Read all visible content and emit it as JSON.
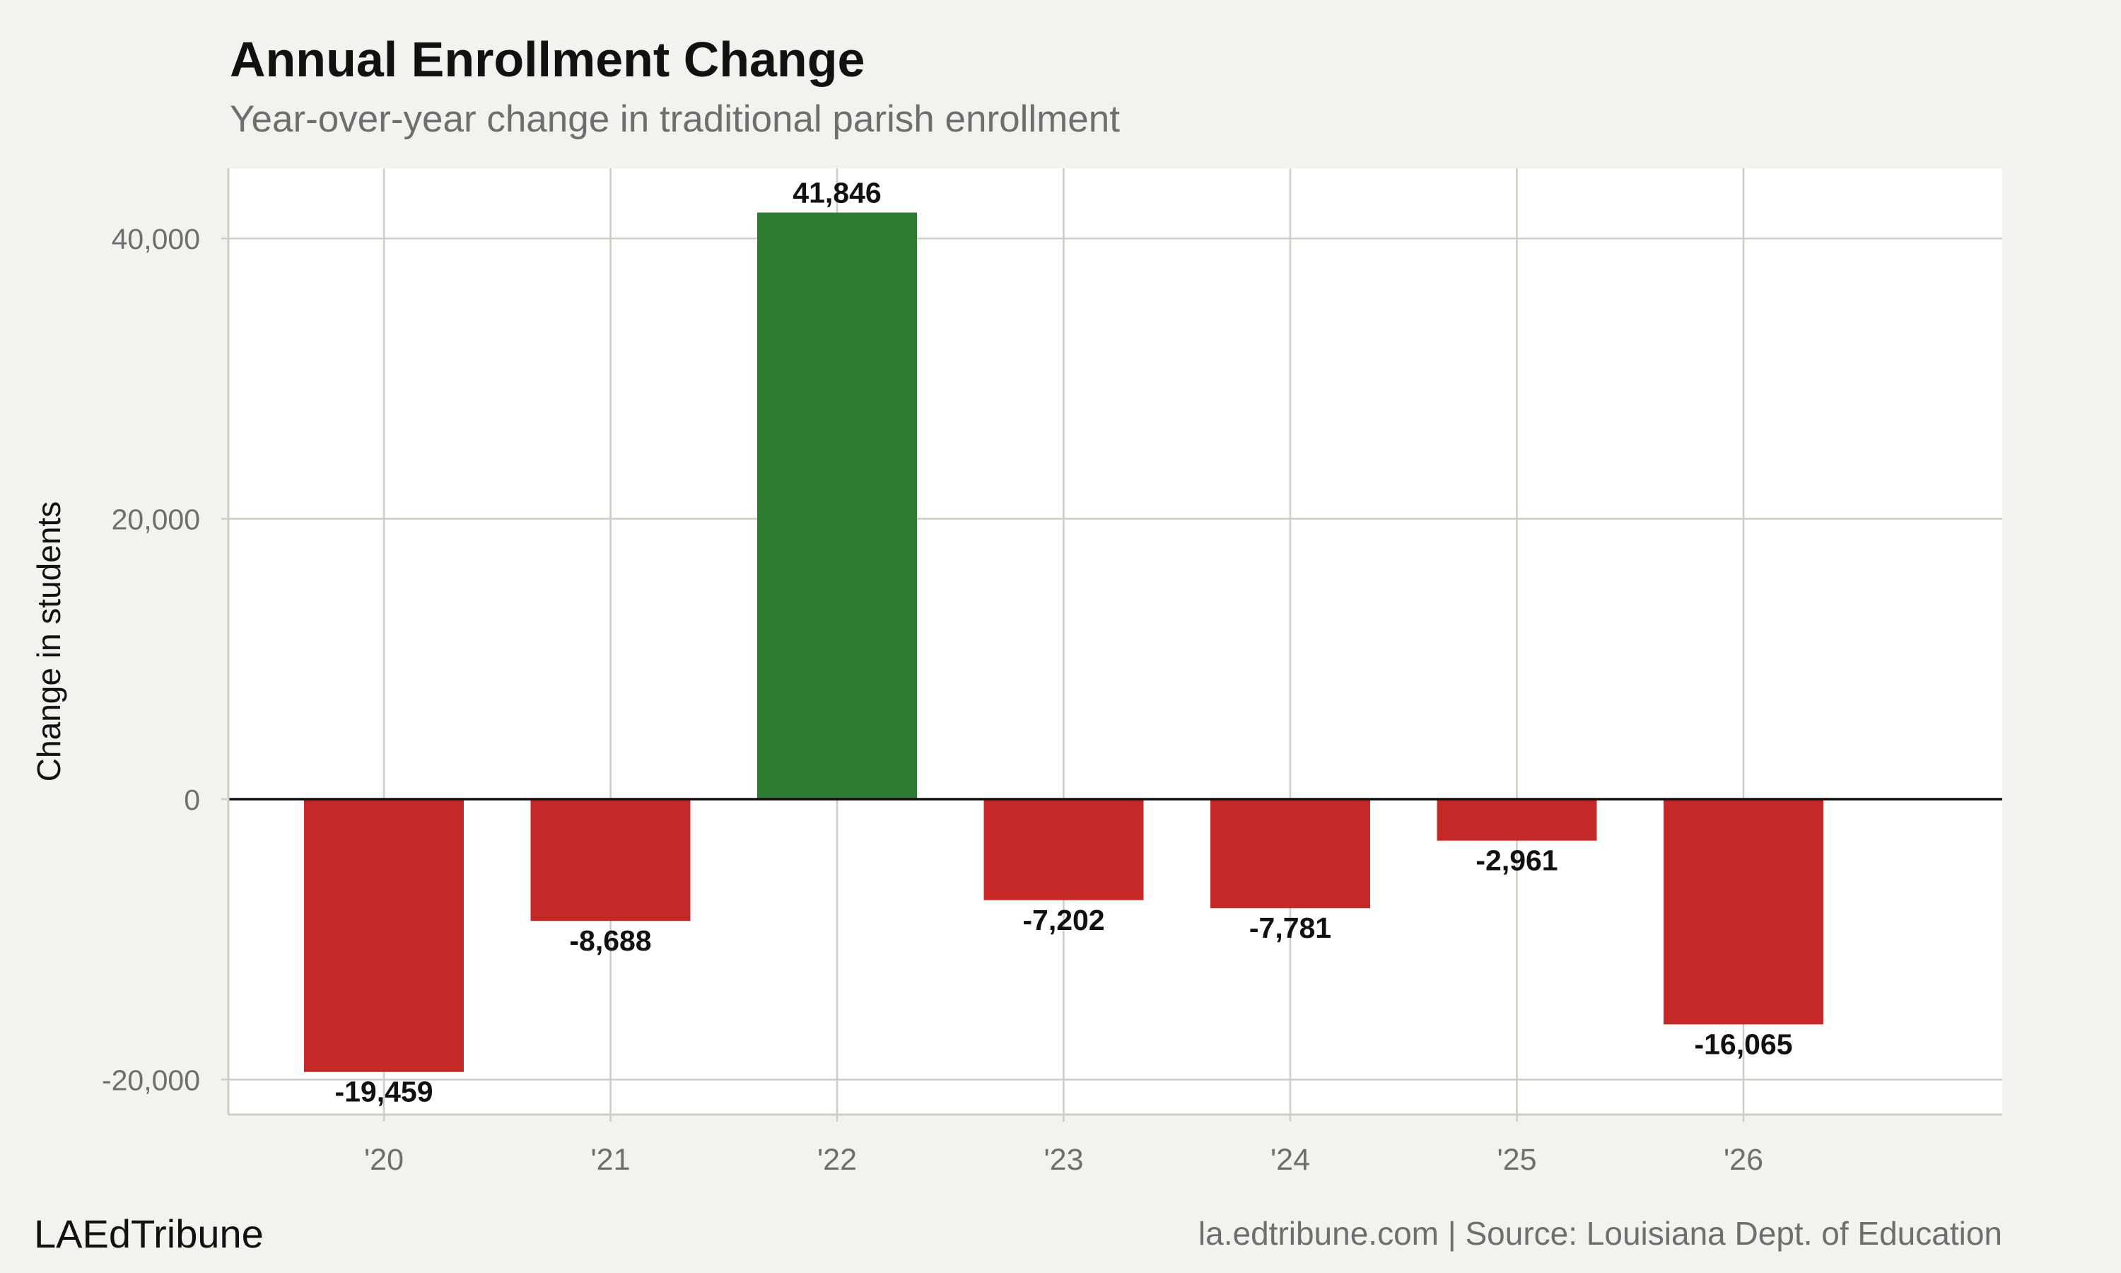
{
  "header": {
    "title": "Annual Enrollment Change",
    "subtitle": "Year-over-year change in traditional parish enrollment"
  },
  "footer": {
    "brand": "LAEdTribune",
    "credit": "la.edtribune.com | Source: Louisiana Dept. of Education"
  },
  "colors": {
    "positive": "#2e7d32",
    "negative": "#c62828",
    "background": "#f4f2ee",
    "panel": "#ffffff",
    "grid": "#cfccc4",
    "axis_text": "#6e6e6e"
  },
  "chart_data": {
    "type": "bar",
    "title": "Annual Enrollment Change",
    "subtitle": "Year-over-year change in traditional parish enrollment",
    "xlabel": "",
    "ylabel": "Change in students",
    "categories": [
      "'20",
      "'21",
      "'22",
      "'23",
      "'24",
      "'25",
      "'26"
    ],
    "values": [
      -19459,
      -8688,
      41846,
      -7202,
      -7781,
      -2961,
      -16065
    ],
    "value_labels": [
      "-19,459",
      "-8,688",
      "41,846",
      "-7,202",
      "-7,781",
      "-2,961",
      "-16,065"
    ],
    "ylim": [
      -22500,
      45000
    ],
    "yticks": [
      -20000,
      0,
      20000,
      40000
    ],
    "ytick_labels": [
      "-20,000",
      "0",
      "20,000",
      "40,000"
    ],
    "grid": true,
    "legend": "none"
  }
}
